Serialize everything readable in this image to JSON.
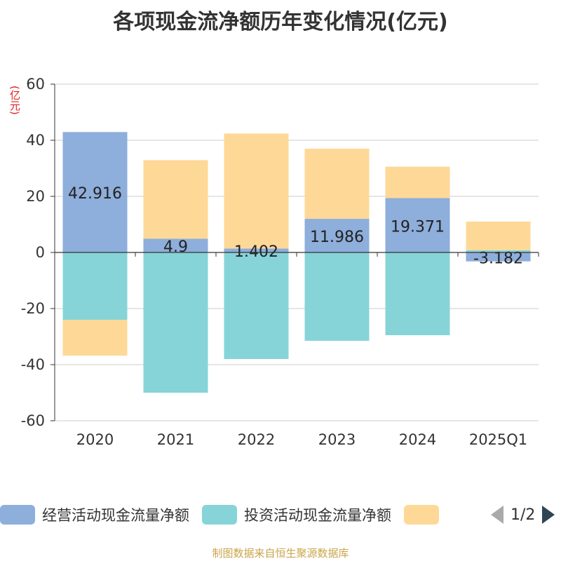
{
  "title": "各项现金流净额历年变化情况(亿元)",
  "unit_label": "(亿元)",
  "legend": {
    "items": [
      {
        "label": "经营活动现金流量净额",
        "color": "#8eaedb"
      },
      {
        "label": "投资活动现金流量净额",
        "color": "#86d4d8"
      },
      {
        "label": "",
        "color": "#fed897"
      }
    ],
    "page": "1/2"
  },
  "footer": "制图数据来自恒生聚源数据库",
  "colors": {
    "operating": "#8eaedb",
    "investing": "#86d4d8",
    "third": "#fed897",
    "grid": "#cccccc",
    "axis": "#333333"
  },
  "chart_data": {
    "type": "bar",
    "stacked": true,
    "categories": [
      "2020",
      "2021",
      "2022",
      "2023",
      "2024",
      "2025Q1"
    ],
    "series": [
      {
        "name": "经营活动现金流量净额",
        "values": [
          42.916,
          4.9,
          1.402,
          11.986,
          19.371,
          -3.182
        ],
        "labels": [
          "42.916",
          "4.9",
          "1.402",
          "11.986",
          "19.371",
          "-3.182"
        ]
      },
      {
        "name": "投资活动现金流量净额",
        "values": [
          -24.0,
          -50.0,
          -38.0,
          -31.5,
          -29.5,
          0.8
        ]
      },
      {
        "name": "",
        "values": [
          -12.8,
          28.0,
          41.0,
          25.0,
          11.2,
          10.2
        ]
      }
    ],
    "yticks": [
      60,
      40,
      20,
      0,
      -20,
      -40,
      -60
    ],
    "ylim": [
      -60,
      60
    ],
    "grid": true,
    "legend_position": "bottom"
  }
}
